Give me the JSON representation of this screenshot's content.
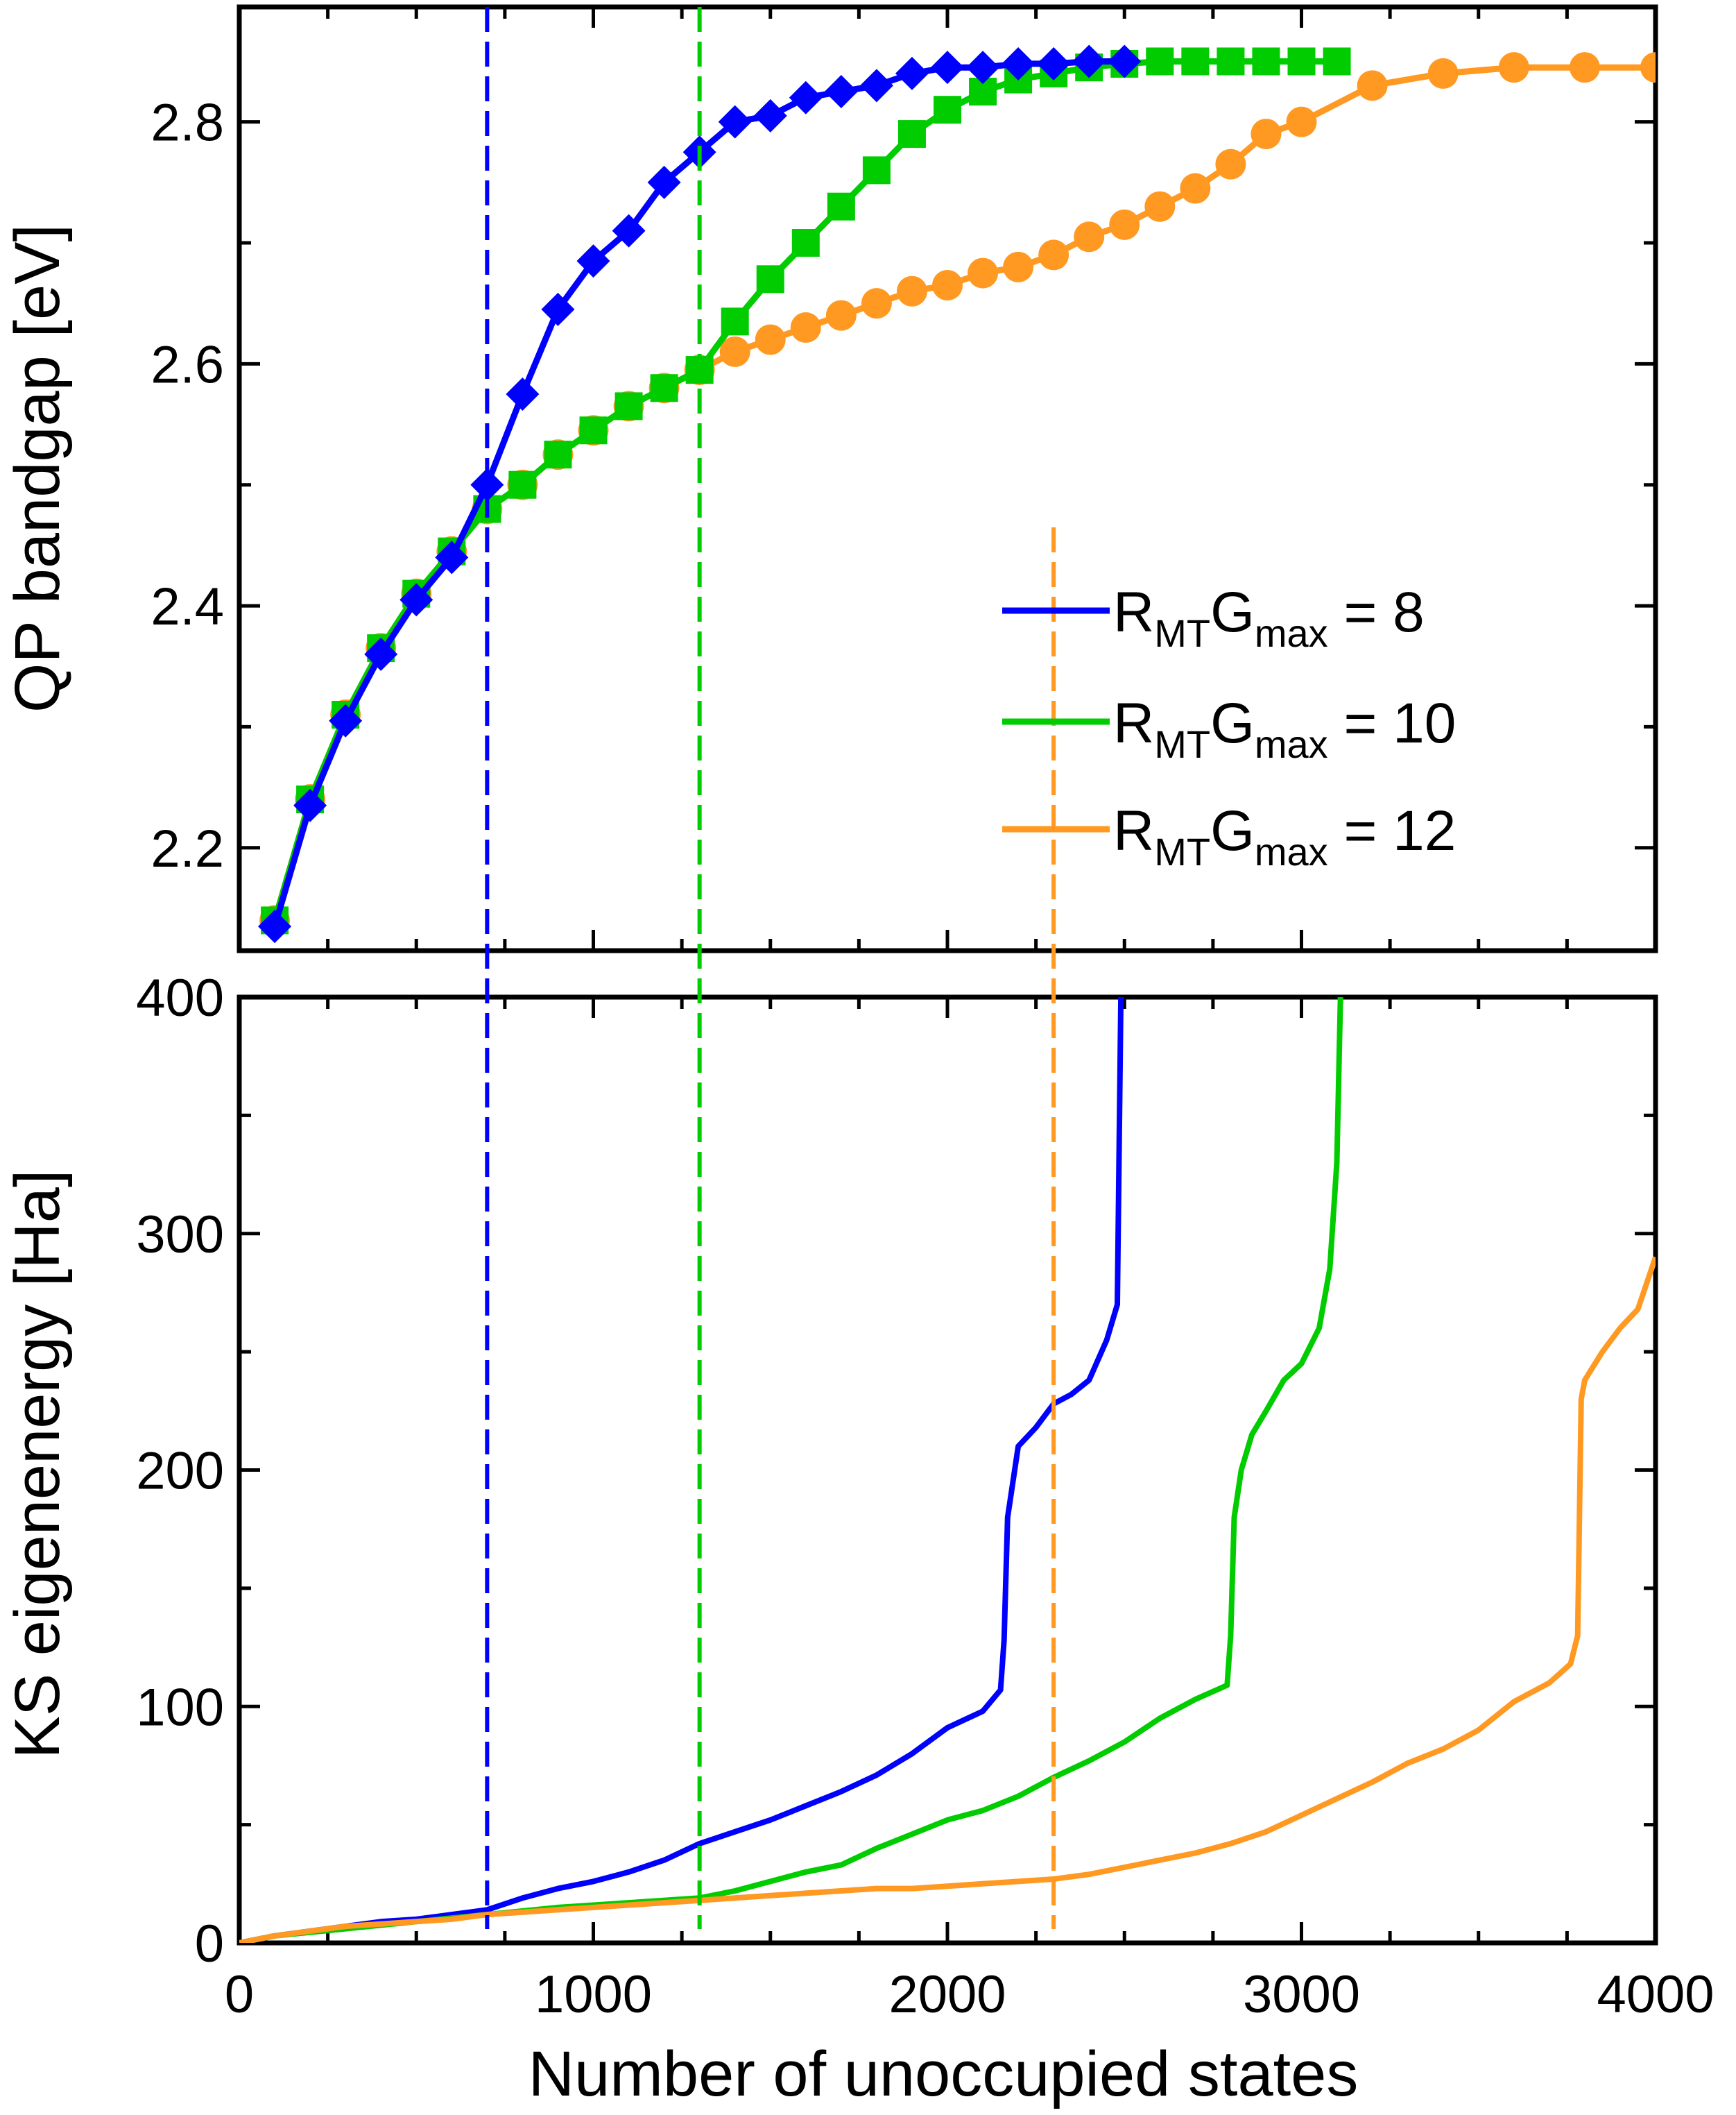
{
  "chart_data": [
    {
      "type": "line",
      "panel": "top",
      "title": "",
      "xlabel": "",
      "ylabel": "QP bandgap [eV]",
      "xlim": [
        0,
        4000
      ],
      "ylim": [
        2.115,
        2.895
      ],
      "grid": false,
      "yticks": [
        2.2,
        2.4,
        2.6,
        2.8
      ],
      "ytick_labels": [
        "2.2",
        "2.4",
        "2.6",
        "2.8"
      ],
      "legend_position": "right",
      "legend_entry_prefix": "R",
      "legend_sub1": "MT",
      "legend_mid": "G",
      "legend_sub2": "max",
      "legend_values": [
        "= 8",
        "= 10",
        "= 12"
      ],
      "series": [
        {
          "name": "RMTGmax = 8",
          "color": "#0000ff",
          "marker": "diamond",
          "x": [
            100,
            200,
            300,
            400,
            500,
            600,
            700,
            800,
            900,
            1000,
            1100,
            1200,
            1300,
            1400,
            1500,
            1600,
            1700,
            1800,
            1900,
            2000,
            2100,
            2200,
            2300,
            2400,
            2500
          ],
          "y": [
            2.135,
            2.235,
            2.305,
            2.36,
            2.405,
            2.44,
            2.5,
            2.575,
            2.645,
            2.685,
            2.71,
            2.75,
            2.775,
            2.8,
            2.805,
            2.82,
            2.825,
            2.83,
            2.84,
            2.845,
            2.845,
            2.848,
            2.848,
            2.85,
            2.85
          ]
        },
        {
          "name": "RMTGmax = 10",
          "color": "#00cc00",
          "marker": "square",
          "x": [
            100,
            200,
            300,
            400,
            500,
            600,
            700,
            800,
            900,
            1000,
            1100,
            1200,
            1300,
            1400,
            1500,
            1600,
            1700,
            1800,
            1900,
            2000,
            2100,
            2200,
            2300,
            2400,
            2500,
            2600,
            2700,
            2800,
            2900,
            3000,
            3100
          ],
          "y": [
            2.14,
            2.24,
            2.31,
            2.365,
            2.41,
            2.445,
            2.48,
            2.5,
            2.525,
            2.545,
            2.565,
            2.58,
            2.595,
            2.635,
            2.67,
            2.7,
            2.73,
            2.76,
            2.79,
            2.81,
            2.825,
            2.835,
            2.84,
            2.845,
            2.848,
            2.85,
            2.85,
            2.85,
            2.85,
            2.85,
            2.85
          ]
        },
        {
          "name": "RMTGmax = 12",
          "color": "#ff9922",
          "marker": "circle",
          "x": [
            100,
            200,
            300,
            400,
            500,
            600,
            700,
            800,
            900,
            1000,
            1100,
            1200,
            1300,
            1400,
            1500,
            1600,
            1700,
            1800,
            1900,
            2000,
            2100,
            2200,
            2300,
            2400,
            2500,
            2600,
            2700,
            2800,
            2900,
            3000,
            3200,
            3400,
            3600,
            3800,
            4000
          ],
          "y": [
            2.14,
            2.24,
            2.31,
            2.365,
            2.41,
            2.445,
            2.48,
            2.5,
            2.525,
            2.545,
            2.565,
            2.58,
            2.595,
            2.61,
            2.62,
            2.63,
            2.64,
            2.65,
            2.66,
            2.665,
            2.675,
            2.68,
            2.69,
            2.705,
            2.715,
            2.73,
            2.745,
            2.765,
            2.79,
            2.8,
            2.83,
            2.84,
            2.845,
            2.845,
            2.845
          ]
        }
      ],
      "vlines": [
        {
          "x": 700,
          "color": "#0000ff",
          "style": "dashed"
        },
        {
          "x": 1300,
          "color": "#00cc00",
          "style": "dashed"
        },
        {
          "x": 2300,
          "color": "#ff9922",
          "style": "dashed"
        }
      ]
    },
    {
      "type": "line",
      "panel": "bottom",
      "title": "",
      "xlabel": "Number of unoccupied states",
      "ylabel": "KS eigenenergy [Ha]",
      "xlim": [
        0,
        4000
      ],
      "ylim": [
        0,
        400
      ],
      "grid": false,
      "xticks": [
        0,
        1000,
        2000,
        3000,
        4000
      ],
      "xtick_labels": [
        "0",
        "1000",
        "2000",
        "3000",
        "4000"
      ],
      "yticks": [
        0,
        100,
        200,
        300,
        400
      ],
      "ytick_labels": [
        "0",
        "100",
        "200",
        "300",
        "400"
      ],
      "series": [
        {
          "name": "RMTGmax = 8",
          "color": "#0000ff",
          "x": [
            0,
            100,
            200,
            300,
            400,
            500,
            600,
            700,
            800,
            900,
            1000,
            1100,
            1200,
            1300,
            1400,
            1500,
            1600,
            1700,
            1800,
            1900,
            2000,
            2100,
            2150,
            2160,
            2170,
            2200,
            2250,
            2300,
            2350,
            2400,
            2450,
            2470,
            2480,
            2490
          ],
          "y": [
            0,
            3,
            5,
            7,
            9,
            10,
            12,
            14,
            19,
            23,
            26,
            30,
            35,
            42,
            47,
            52,
            58,
            64,
            71,
            80,
            91,
            98,
            107,
            128,
            180,
            210,
            218,
            228,
            232,
            238,
            255,
            265,
            270,
            400
          ]
        },
        {
          "name": "RMTGmax = 10",
          "color": "#00cc00",
          "x": [
            0,
            100,
            300,
            500,
            700,
            900,
            1100,
            1300,
            1400,
            1500,
            1600,
            1700,
            1800,
            1900,
            2000,
            2100,
            2200,
            2300,
            2400,
            2500,
            2600,
            2700,
            2790,
            2800,
            2810,
            2830,
            2860,
            2900,
            2950,
            3000,
            3050,
            3080,
            3100,
            3110
          ],
          "y": [
            0,
            3,
            6,
            9,
            12,
            15,
            17,
            19,
            22,
            26,
            30,
            33,
            40,
            46,
            52,
            56,
            62,
            70,
            77,
            85,
            95,
            103,
            109,
            130,
            180,
            200,
            215,
            225,
            238,
            245,
            260,
            285,
            330,
            400
          ]
        },
        {
          "name": "RMTGmax = 12",
          "color": "#ff9922",
          "x": [
            0,
            100,
            200,
            300,
            400,
            500,
            600,
            700,
            800,
            900,
            1000,
            1100,
            1200,
            1300,
            1400,
            1500,
            1600,
            1700,
            1800,
            1900,
            2000,
            2100,
            2200,
            2300,
            2400,
            2500,
            2600,
            2700,
            2800,
            2900,
            3000,
            3100,
            3200,
            3300,
            3400,
            3500,
            3600,
            3700,
            3760,
            3780,
            3790,
            3800,
            3850,
            3900,
            3950,
            4000
          ],
          "y": [
            0,
            3,
            5,
            7,
            8,
            9,
            10,
            12,
            13,
            14,
            15,
            16,
            17,
            18,
            19,
            20,
            21,
            22,
            23,
            23,
            24,
            25,
            26,
            27,
            29,
            32,
            35,
            38,
            42,
            47,
            54,
            61,
            68,
            76,
            82,
            90,
            102,
            110,
            118,
            130,
            230,
            238,
            250,
            260,
            268,
            290
          ]
        }
      ],
      "vlines": [
        {
          "x": 700,
          "color": "#0000ff",
          "style": "dashed"
        },
        {
          "x": 1300,
          "color": "#00cc00",
          "style": "dashed"
        },
        {
          "x": 2300,
          "color": "#ff9922",
          "style": "dashed"
        }
      ]
    }
  ]
}
